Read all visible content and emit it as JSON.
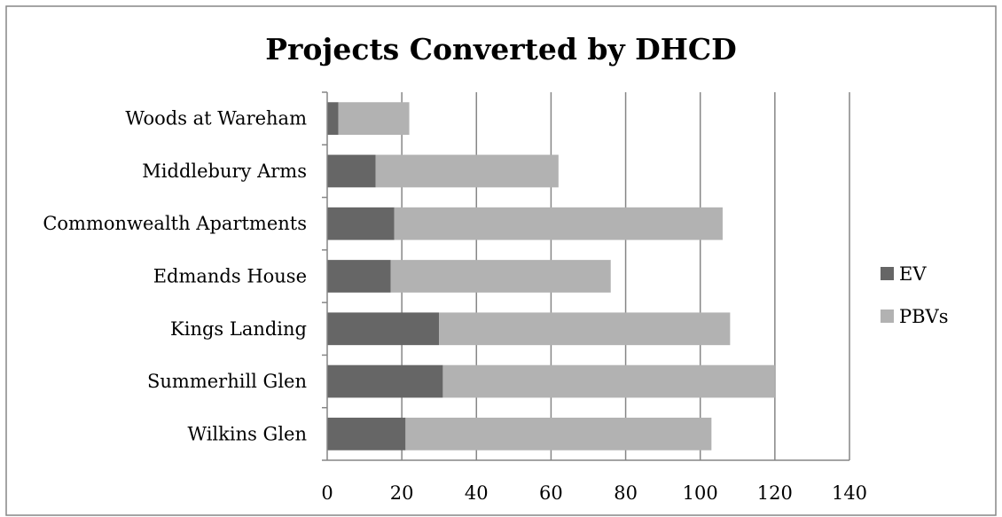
{
  "chart_data": {
    "type": "bar",
    "orientation": "horizontal",
    "stacked": true,
    "title": "Projects Converted by DHCD",
    "xlabel": "",
    "ylabel": "",
    "categories": [
      "Woods at Wareham",
      "Middlebury Arms",
      "Commonwealth Apartments",
      "Edmands House",
      "Kings Landing",
      "Summerhill Glen",
      "Wilkins Glen"
    ],
    "series": [
      {
        "name": "EV",
        "color": "#666666",
        "values": [
          3,
          13,
          18,
          17,
          30,
          31,
          21
        ]
      },
      {
        "name": "PBVs",
        "color": "#b2b2b2",
        "values": [
          19,
          49,
          88,
          59,
          78,
          89,
          82
        ]
      }
    ],
    "xlim": [
      0,
      140
    ],
    "xticks": [
      "0",
      "20",
      "40",
      "60",
      "80",
      "100",
      "120",
      "140"
    ],
    "grid": "vertical",
    "legend_position": "right"
  }
}
